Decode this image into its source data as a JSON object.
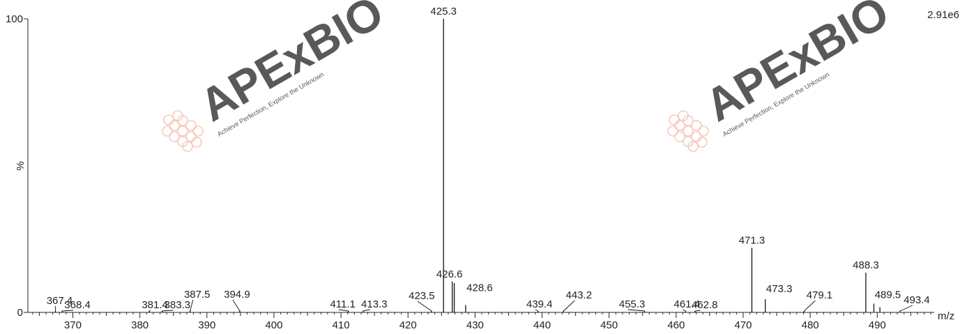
{
  "chart_data": {
    "type": "bar",
    "subtype": "mass-spectrum-stick",
    "header_left": "",
    "header_right": "",
    "intensity_label": "2.91e6",
    "xlabel": "m/z",
    "ylabel": "%",
    "xlim": [
      363.5,
      498.5
    ],
    "ylim": [
      0,
      100
    ],
    "xticks": [
      370,
      380,
      390,
      400,
      410,
      420,
      430,
      440,
      450,
      460,
      470,
      480,
      490
    ],
    "yticks": [
      0,
      100
    ],
    "grid": false,
    "peaks": [
      {
        "mz": 425.3,
        "intensity": 100,
        "label": "425.3"
      },
      {
        "mz": 426.6,
        "intensity": 10.5,
        "label": "426.6"
      },
      {
        "mz": 426.9,
        "intensity": 10.0,
        "label": ""
      },
      {
        "mz": 428.6,
        "intensity": 2.5,
        "label": "428.6"
      },
      {
        "mz": 471.3,
        "intensity": 22.0,
        "label": "471.3"
      },
      {
        "mz": 488.3,
        "intensity": 13.5,
        "label": "488.3"
      },
      {
        "mz": 473.3,
        "intensity": 4.5,
        "label": "473.3"
      },
      {
        "mz": 489.5,
        "intensity": 3.0,
        "label": "489.5"
      },
      {
        "mz": 490.4,
        "intensity": 1.8,
        "label": ""
      },
      {
        "mz": 423.5,
        "intensity": 0.6,
        "label": "423.5"
      },
      {
        "mz": 367.4,
        "intensity": 0.5,
        "label": "367.4"
      },
      {
        "mz": 368.4,
        "intensity": 0.5,
        "label": "368.4"
      },
      {
        "mz": 381.4,
        "intensity": 0.5,
        "label": "381.4"
      },
      {
        "mz": 383.3,
        "intensity": 0.5,
        "label": "383.3"
      },
      {
        "mz": 387.5,
        "intensity": 0.7,
        "label": "387.5"
      },
      {
        "mz": 394.9,
        "intensity": 0.7,
        "label": "394.9"
      },
      {
        "mz": 411.1,
        "intensity": 0.5,
        "label": "411.1"
      },
      {
        "mz": 413.3,
        "intensity": 0.5,
        "label": "413.3"
      },
      {
        "mz": 439.4,
        "intensity": 0.5,
        "label": "439.4"
      },
      {
        "mz": 443.2,
        "intensity": 0.6,
        "label": "443.2"
      },
      {
        "mz": 455.3,
        "intensity": 0.5,
        "label": "455.3"
      },
      {
        "mz": 461.4,
        "intensity": 0.5,
        "label": "461.4"
      },
      {
        "mz": 462.8,
        "intensity": 0.5,
        "label": "462.8"
      },
      {
        "mz": 479.1,
        "intensity": 0.5,
        "label": "479.1"
      },
      {
        "mz": 493.4,
        "intensity": 0.6,
        "label": "493.4"
      }
    ]
  },
  "watermark": {
    "brand": "APExBIO",
    "tagline": "Achieve Perfection, Explore the Unknown",
    "brand_color": "#f4b8a6",
    "logo_icon": "cell-cluster-icon"
  }
}
